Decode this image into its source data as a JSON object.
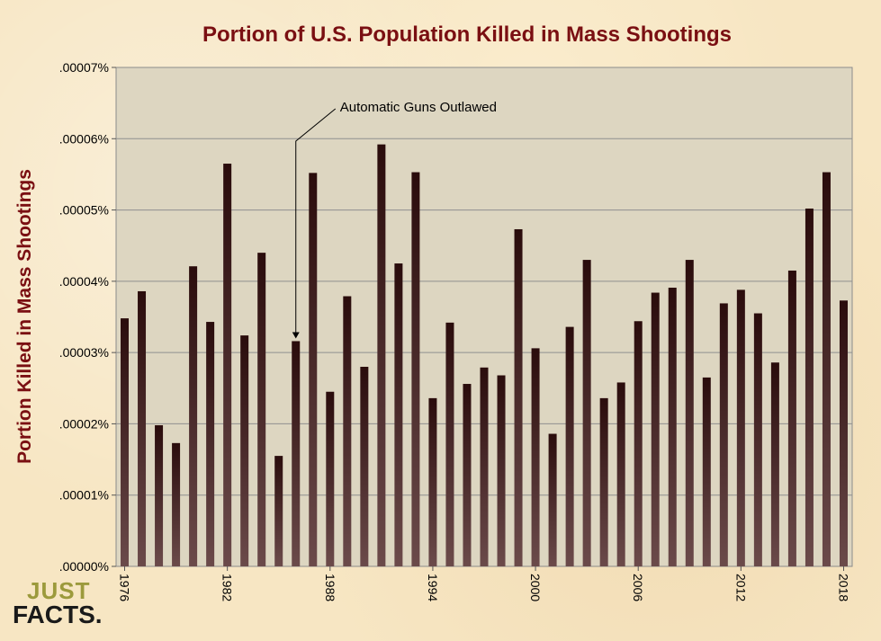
{
  "chart_data": {
    "type": "bar",
    "title": "Portion of U.S. Population Killed in Mass Shootings",
    "ylabel": "Portion Killed in Mass Shootings",
    "xlabel": "",
    "ylim": [
      0,
      7e-05
    ],
    "y_ticks": [
      ".00000%",
      ".00001%",
      ".00002%",
      ".00003%",
      ".00004%",
      ".00005%",
      ".00006%",
      ".00007%"
    ],
    "x_tick_labels": [
      "1976",
      "1982",
      "1988",
      "1994",
      "2000",
      "2006",
      "2012",
      "2018"
    ],
    "categories": [
      "1976",
      "1977",
      "1978",
      "1979",
      "1980",
      "1981",
      "1982",
      "1983",
      "1984",
      "1985",
      "1986",
      "1987",
      "1988",
      "1989",
      "1990",
      "1991",
      "1992",
      "1993",
      "1994",
      "1995",
      "1996",
      "1997",
      "1998",
      "1999",
      "2000",
      "2001",
      "2002",
      "2003",
      "2004",
      "2005",
      "2006",
      "2007",
      "2008",
      "2009",
      "2010",
      "2011",
      "2012",
      "2013",
      "2014",
      "2015",
      "2016",
      "2017",
      "2018"
    ],
    "values": [
      3.48e-05,
      3.86e-05,
      1.98e-05,
      1.73e-05,
      4.21e-05,
      3.43e-05,
      5.65e-05,
      3.24e-05,
      4.4e-05,
      1.55e-05,
      3.16e-05,
      5.52e-05,
      2.45e-05,
      3.79e-05,
      2.8e-05,
      5.92e-05,
      4.25e-05,
      5.53e-05,
      2.36e-05,
      3.42e-05,
      2.56e-05,
      2.79e-05,
      2.68e-05,
      4.73e-05,
      3.06e-05,
      1.86e-05,
      3.36e-05,
      4.3e-05,
      2.36e-05,
      2.58e-05,
      3.44e-05,
      3.84e-05,
      3.91e-05,
      4.3e-05,
      2.65e-05,
      3.69e-05,
      3.88e-05,
      3.55e-05,
      2.86e-05,
      4.15e-05,
      5.02e-05,
      5.53e-05,
      3.73e-05
    ],
    "annotation": {
      "text": "Automatic Guns Outlawed",
      "year": "1986"
    },
    "grid": true,
    "colors": {
      "bar_top": "#2a0c0c",
      "bar_bottom": "#6b4a4a",
      "plot_bg": "#ddd6c1",
      "title": "#7a0f12"
    }
  },
  "logo": {
    "line1": "JUST",
    "line2": "FACTS."
  }
}
